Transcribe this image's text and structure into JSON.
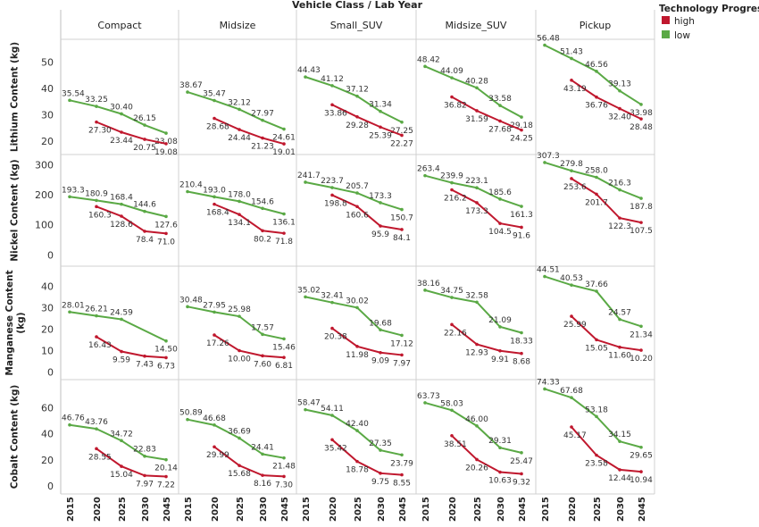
{
  "chart_data": {
    "type": "line",
    "title": "Vehicle Class  /  Lab Year",
    "columns": [
      "Compact",
      "Midsize",
      "Small_SUV",
      "Midsize_SUV",
      "Pickup"
    ],
    "x": [
      2015,
      2020,
      2025,
      2030,
      2045
    ],
    "x_tick_labels": [
      "2015",
      "2020",
      "2025",
      "2030",
      "2045"
    ],
    "legend": {
      "title": "Technology Progress",
      "position": "top-right",
      "entries": [
        {
          "name": "high",
          "color": "#c0182e"
        },
        {
          "name": "low",
          "color": "#5aa945"
        }
      ]
    },
    "rows": [
      {
        "ylabel": "Lithium Content (kg)",
        "ylim": [
          17,
          56
        ],
        "yticks": [
          20,
          30,
          40,
          50
        ],
        "decimals": 2,
        "series": {
          "low": [
            [
              35.54,
              33.25,
              30.4,
              26.15,
              23.08
            ],
            [
              38.67,
              35.47,
              32.12,
              27.97,
              24.61
            ],
            [
              44.43,
              41.12,
              37.12,
              31.34,
              27.25
            ],
            [
              48.42,
              44.09,
              40.28,
              33.58,
              29.18
            ],
            [
              56.48,
              51.43,
              46.56,
              39.13,
              33.98
            ]
          ],
          "high": [
            [
              null,
              27.3,
              23.44,
              20.75,
              19.08
            ],
            [
              null,
              28.68,
              24.44,
              21.23,
              19.01
            ],
            [
              null,
              33.86,
              29.28,
              25.39,
              22.27
            ],
            [
              null,
              36.82,
              31.59,
              27.68,
              24.25
            ],
            [
              null,
              43.19,
              36.76,
              32.4,
              28.48
            ]
          ]
        }
      },
      {
        "ylabel": "Nickel Content (kg)",
        "ylim": [
          -20,
          310
        ],
        "yticks": [
          0,
          100,
          200,
          300
        ],
        "decimals": 1,
        "series": {
          "low": [
            [
              193.3,
              180.9,
              168.4,
              144.6,
              127.6
            ],
            [
              210.4,
              193.0,
              178.0,
              154.6,
              136.1
            ],
            [
              241.7,
              223.7,
              205.7,
              173.3,
              150.7
            ],
            [
              263.4,
              239.9,
              223.1,
              185.6,
              161.3
            ],
            [
              307.3,
              279.8,
              258.0,
              216.3,
              187.8
            ]
          ],
          "high": [
            [
              null,
              160.3,
              128.6,
              78.4,
              71.0
            ],
            [
              null,
              168.4,
              134.1,
              80.2,
              71.8
            ],
            [
              null,
              198.8,
              160.6,
              95.9,
              84.1
            ],
            [
              null,
              216.2,
              173.3,
              104.5,
              91.6
            ],
            [
              null,
              253.6,
              201.7,
              122.3,
              107.5
            ]
          ]
        }
      },
      {
        "ylabel": "Manganese Content (kg)",
        "ylim": [
          -1,
          46
        ],
        "yticks": [
          0,
          10,
          20,
          30,
          40
        ],
        "decimals": 2,
        "series": {
          "low": [
            [
              28.01,
              26.21,
              24.59,
              null,
              14.5
            ],
            [
              30.48,
              27.95,
              25.98,
              17.57,
              15.46
            ],
            [
              35.02,
              32.41,
              30.02,
              19.68,
              17.12
            ],
            [
              38.16,
              34.75,
              32.58,
              21.09,
              18.33
            ],
            [
              44.51,
              40.53,
              37.66,
              24.57,
              21.34
            ]
          ],
          "high": [
            [
              null,
              16.43,
              9.59,
              7.43,
              6.73
            ],
            [
              null,
              17.26,
              10.0,
              7.6,
              6.81
            ],
            [
              null,
              20.38,
              11.98,
              9.09,
              7.97
            ],
            [
              null,
              22.16,
              12.93,
              9.91,
              8.68
            ],
            [
              null,
              25.99,
              15.05,
              11.6,
              10.2
            ]
          ]
        }
      },
      {
        "ylabel": "Cobalt Content (kg)",
        "ylim": [
          -2,
          76
        ],
        "yticks": [
          0,
          20,
          40,
          60
        ],
        "decimals": 2,
        "series": {
          "low": [
            [
              46.76,
              43.76,
              34.72,
              22.83,
              20.14
            ],
            [
              50.89,
              46.68,
              36.69,
              24.41,
              21.48
            ],
            [
              58.47,
              54.11,
              42.4,
              27.35,
              23.79
            ],
            [
              63.73,
              58.03,
              46.0,
              29.31,
              25.47
            ],
            [
              74.33,
              67.68,
              53.18,
              34.15,
              29.65
            ]
          ],
          "high": [
            [
              null,
              28.55,
              15.04,
              7.97,
              7.22
            ],
            [
              null,
              29.99,
              15.68,
              8.16,
              7.3
            ],
            [
              null,
              35.42,
              18.78,
              9.75,
              8.55
            ],
            [
              null,
              38.51,
              20.26,
              10.63,
              9.32
            ],
            [
              null,
              45.17,
              23.58,
              12.44,
              10.94
            ]
          ]
        }
      }
    ]
  },
  "colors": {
    "high": "#c0182e",
    "low": "#5aa945",
    "grid": "#d0d0d0",
    "border": "#bfbfbf"
  }
}
